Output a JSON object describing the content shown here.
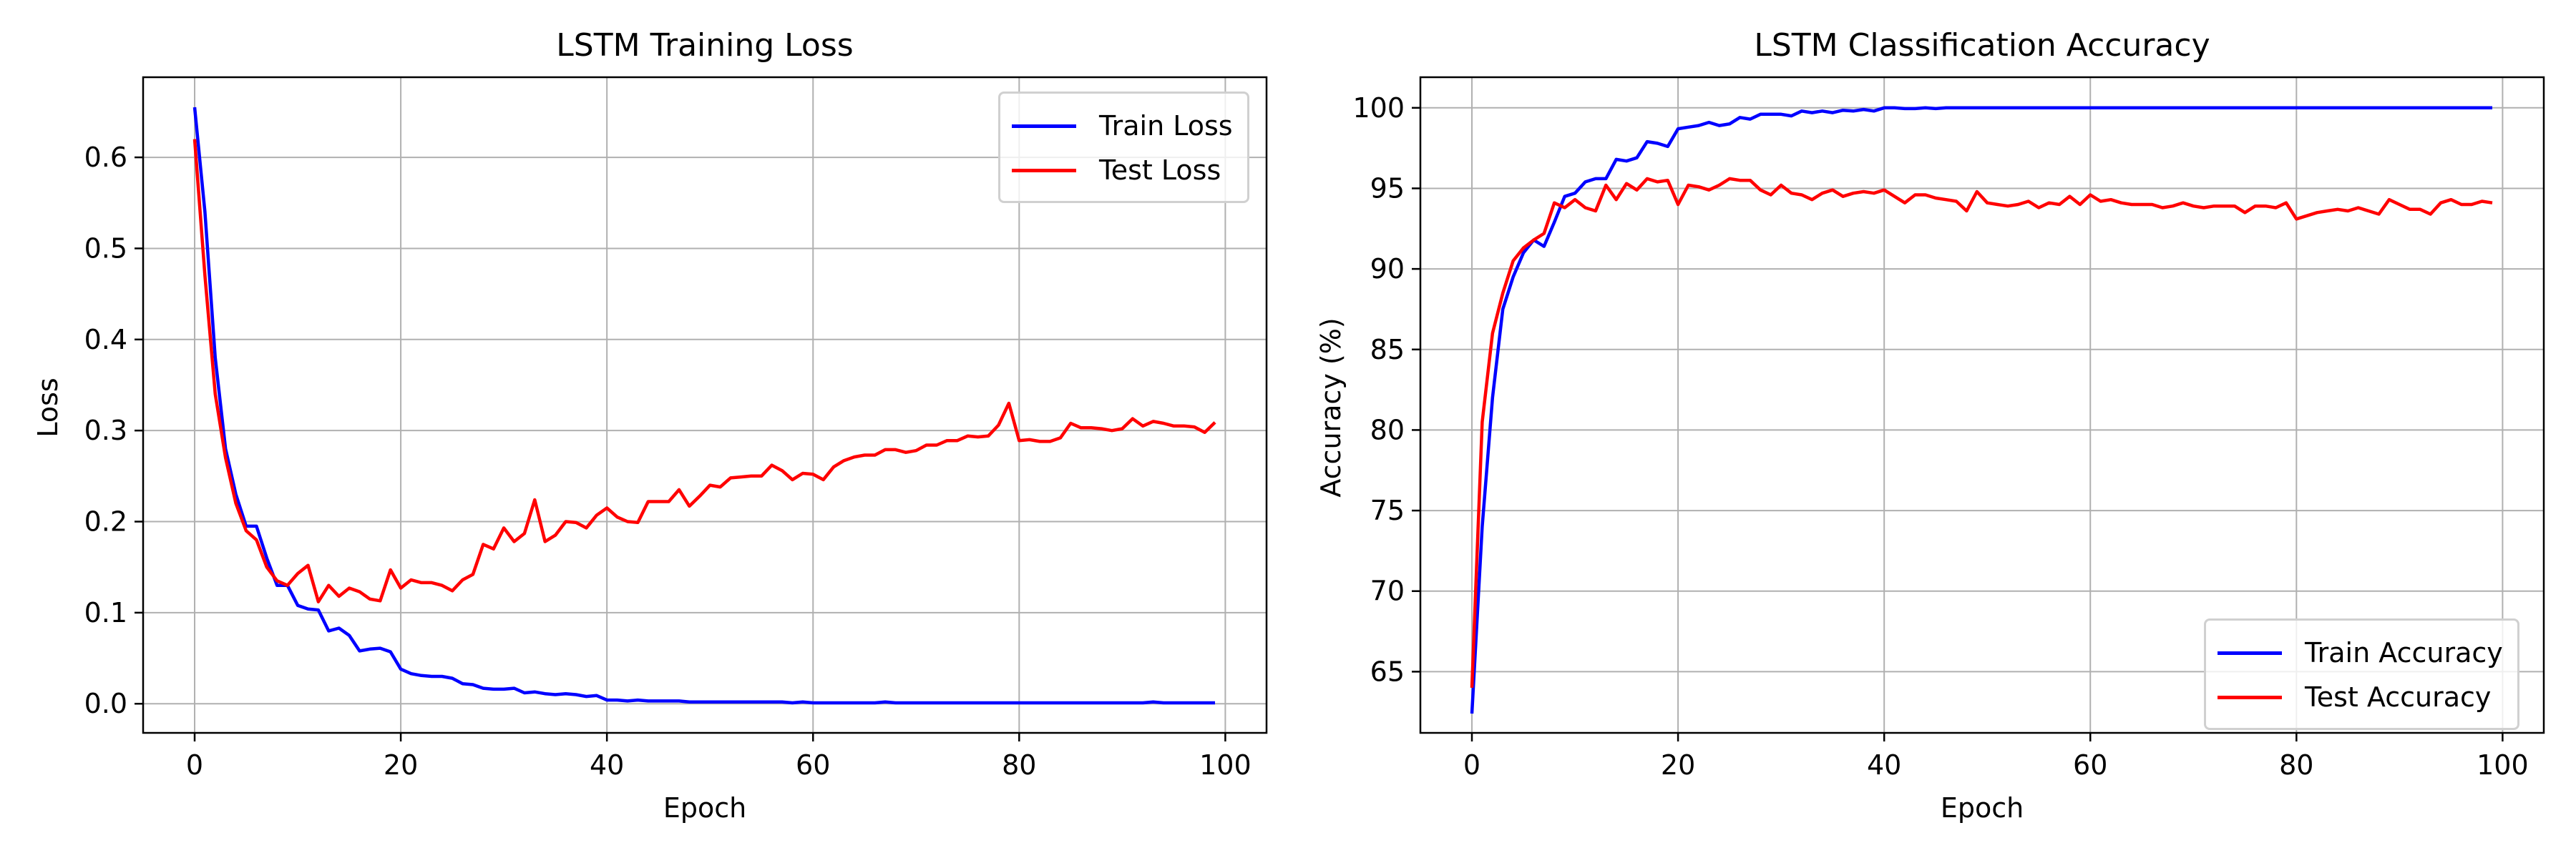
{
  "figure": {
    "left": {
      "title": "LSTM Training Loss",
      "xlabel": "Epoch",
      "ylabel": "Loss",
      "xticks": [
        "0",
        "20",
        "40",
        "60",
        "80",
        "100"
      ],
      "yticks": [
        "0.0",
        "0.1",
        "0.2",
        "0.3",
        "0.4",
        "0.5",
        "0.6"
      ],
      "legend": [
        {
          "label": "Train Loss",
          "color": "#0000ff"
        },
        {
          "label": "Test Loss",
          "color": "#ff0000"
        }
      ]
    },
    "right": {
      "title": "LSTM Classification Accuracy",
      "xlabel": "Epoch",
      "ylabel": "Accuracy (%)",
      "xticks": [
        "0",
        "20",
        "40",
        "60",
        "80",
        "100"
      ],
      "yticks": [
        "65",
        "70",
        "75",
        "80",
        "85",
        "90",
        "95",
        "100"
      ],
      "legend": [
        {
          "label": "Train Accuracy",
          "color": "#0000ff"
        },
        {
          "label": "Test Accuracy",
          "color": "#ff0000"
        }
      ]
    }
  },
  "chart_data": [
    {
      "type": "line",
      "title": "LSTM Training Loss",
      "xlabel": "Epoch",
      "ylabel": "Loss",
      "xlim": [
        -5,
        104
      ],
      "ylim": [
        -0.032,
        0.688
      ],
      "grid": true,
      "legend_position": "upper right",
      "x": [
        0,
        1,
        2,
        3,
        4,
        5,
        6,
        7,
        8,
        9,
        10,
        11,
        12,
        13,
        14,
        15,
        16,
        17,
        18,
        19,
        20,
        21,
        22,
        23,
        24,
        25,
        26,
        27,
        28,
        29,
        30,
        31,
        32,
        33,
        34,
        35,
        36,
        37,
        38,
        39,
        40,
        41,
        42,
        43,
        44,
        45,
        46,
        47,
        48,
        49,
        50,
        51,
        52,
        53,
        54,
        55,
        56,
        57,
        58,
        59,
        60,
        61,
        62,
        63,
        64,
        65,
        66,
        67,
        68,
        69,
        70,
        71,
        72,
        73,
        74,
        75,
        76,
        77,
        78,
        79,
        80,
        81,
        82,
        83,
        84,
        85,
        86,
        87,
        88,
        89,
        90,
        91,
        92,
        93,
        94,
        95,
        96,
        97,
        98,
        99
      ],
      "series": [
        {
          "name": "Train Loss",
          "color": "#0000ff",
          "values": [
            0.655,
            0.54,
            0.38,
            0.28,
            0.23,
            0.195,
            0.195,
            0.16,
            0.13,
            0.13,
            0.108,
            0.104,
            0.103,
            0.08,
            0.083,
            0.075,
            0.058,
            0.06,
            0.061,
            0.057,
            0.038,
            0.033,
            0.031,
            0.03,
            0.03,
            0.028,
            0.022,
            0.021,
            0.017,
            0.016,
            0.016,
            0.017,
            0.012,
            0.013,
            0.011,
            0.01,
            0.011,
            0.01,
            0.008,
            0.009,
            0.004,
            0.004,
            0.003,
            0.004,
            0.003,
            0.003,
            0.003,
            0.003,
            0.002,
            0.002,
            0.002,
            0.002,
            0.002,
            0.002,
            0.002,
            0.002,
            0.002,
            0.002,
            0.001,
            0.002,
            0.001,
            0.001,
            0.001,
            0.001,
            0.001,
            0.001,
            0.001,
            0.002,
            0.001,
            0.001,
            0.001,
            0.001,
            0.001,
            0.001,
            0.001,
            0.001,
            0.001,
            0.001,
            0.001,
            0.001,
            0.001,
            0.001,
            0.001,
            0.001,
            0.001,
            0.001,
            0.001,
            0.001,
            0.001,
            0.001,
            0.001,
            0.001,
            0.001,
            0.002,
            0.001,
            0.001,
            0.001,
            0.001,
            0.001,
            0.001
          ]
        },
        {
          "name": "Test Loss",
          "color": "#ff0000",
          "values": [
            0.62,
            0.47,
            0.34,
            0.27,
            0.22,
            0.19,
            0.18,
            0.15,
            0.135,
            0.13,
            0.143,
            0.152,
            0.112,
            0.13,
            0.118,
            0.127,
            0.123,
            0.115,
            0.113,
            0.147,
            0.127,
            0.136,
            0.133,
            0.133,
            0.13,
            0.124,
            0.136,
            0.142,
            0.175,
            0.17,
            0.193,
            0.178,
            0.187,
            0.224,
            0.178,
            0.185,
            0.2,
            0.199,
            0.193,
            0.207,
            0.215,
            0.205,
            0.2,
            0.199,
            0.222,
            0.222,
            0.222,
            0.235,
            0.217,
            0.228,
            0.24,
            0.238,
            0.248,
            0.249,
            0.25,
            0.25,
            0.262,
            0.256,
            0.246,
            0.253,
            0.252,
            0.246,
            0.26,
            0.267,
            0.271,
            0.273,
            0.273,
            0.279,
            0.279,
            0.276,
            0.278,
            0.284,
            0.284,
            0.289,
            0.289,
            0.294,
            0.293,
            0.294,
            0.306,
            0.33,
            0.289,
            0.29,
            0.288,
            0.288,
            0.292,
            0.308,
            0.303,
            0.303,
            0.302,
            0.3,
            0.302,
            0.313,
            0.305,
            0.31,
            0.308,
            0.305,
            0.305,
            0.304,
            0.298,
            0.309
          ]
        }
      ]
    },
    {
      "type": "line",
      "title": "LSTM Classification Accuracy",
      "xlabel": "Epoch",
      "ylabel": "Accuracy (%)",
      "xlim": [
        -5,
        104
      ],
      "ylim": [
        61.2,
        101.9
      ],
      "grid": true,
      "legend_position": "lower right",
      "x": [
        0,
        1,
        2,
        3,
        4,
        5,
        6,
        7,
        8,
        9,
        10,
        11,
        12,
        13,
        14,
        15,
        16,
        17,
        18,
        19,
        20,
        21,
        22,
        23,
        24,
        25,
        26,
        27,
        28,
        29,
        30,
        31,
        32,
        33,
        34,
        35,
        36,
        37,
        38,
        39,
        40,
        41,
        42,
        43,
        44,
        45,
        46,
        47,
        48,
        49,
        50,
        51,
        52,
        53,
        54,
        55,
        56,
        57,
        58,
        59,
        60,
        61,
        62,
        63,
        64,
        65,
        66,
        67,
        68,
        69,
        70,
        71,
        72,
        73,
        74,
        75,
        76,
        77,
        78,
        79,
        80,
        81,
        82,
        83,
        84,
        85,
        86,
        87,
        88,
        89,
        90,
        91,
        92,
        93,
        94,
        95,
        96,
        97,
        98,
        99
      ],
      "series": [
        {
          "name": "Train Accuracy",
          "color": "#0000ff",
          "values": [
            62.4,
            74.0,
            82.0,
            87.5,
            89.5,
            91.0,
            91.8,
            91.4,
            92.9,
            94.5,
            94.7,
            95.4,
            95.6,
            95.6,
            96.8,
            96.7,
            96.9,
            97.9,
            97.8,
            97.6,
            98.7,
            98.8,
            98.9,
            99.1,
            98.9,
            99.0,
            99.4,
            99.3,
            99.6,
            99.6,
            99.6,
            99.5,
            99.8,
            99.7,
            99.8,
            99.7,
            99.85,
            99.8,
            99.9,
            99.8,
            100.0,
            100.0,
            99.95,
            99.95,
            100.0,
            99.95,
            100.0,
            100.0,
            100.0,
            100.0,
            100.0,
            100.0,
            100.0,
            100.0,
            100.0,
            100.0,
            100.0,
            100.0,
            100.0,
            100.0,
            100.0,
            100.0,
            100.0,
            100.0,
            100.0,
            100.0,
            100.0,
            100.0,
            100.0,
            100.0,
            100.0,
            100.0,
            100.0,
            100.0,
            100.0,
            100.0,
            100.0,
            100.0,
            100.0,
            100.0,
            100.0,
            100.0,
            100.0,
            100.0,
            100.0,
            100.0,
            100.0,
            100.0,
            100.0,
            100.0,
            100.0,
            100.0,
            100.0,
            100.0,
            100.0,
            100.0,
            100.0,
            100.0,
            100.0,
            100.0
          ]
        },
        {
          "name": "Test Accuracy",
          "color": "#ff0000",
          "values": [
            64.0,
            80.5,
            86.0,
            88.5,
            90.5,
            91.3,
            91.8,
            92.2,
            94.1,
            93.8,
            94.3,
            93.8,
            93.6,
            95.2,
            94.3,
            95.3,
            94.9,
            95.6,
            95.4,
            95.5,
            94.0,
            95.2,
            95.1,
            94.9,
            95.2,
            95.6,
            95.5,
            95.5,
            94.9,
            94.6,
            95.2,
            94.7,
            94.6,
            94.3,
            94.7,
            94.9,
            94.5,
            94.7,
            94.8,
            94.7,
            94.9,
            94.5,
            94.1,
            94.6,
            94.6,
            94.4,
            94.3,
            94.2,
            93.6,
            94.8,
            94.1,
            94.0,
            93.9,
            94.0,
            94.2,
            93.8,
            94.1,
            94.0,
            94.5,
            94.0,
            94.6,
            94.2,
            94.3,
            94.1,
            94.0,
            94.0,
            94.0,
            93.8,
            93.9,
            94.1,
            93.9,
            93.8,
            93.9,
            93.9,
            93.9,
            93.5,
            93.9,
            93.9,
            93.8,
            94.1,
            93.1,
            93.3,
            93.5,
            93.6,
            93.7,
            93.6,
            93.8,
            93.6,
            93.4,
            94.3,
            94.0,
            93.7,
            93.7,
            93.4,
            94.1,
            94.3,
            94.0,
            94.0,
            94.2,
            94.1
          ]
        }
      ]
    }
  ]
}
